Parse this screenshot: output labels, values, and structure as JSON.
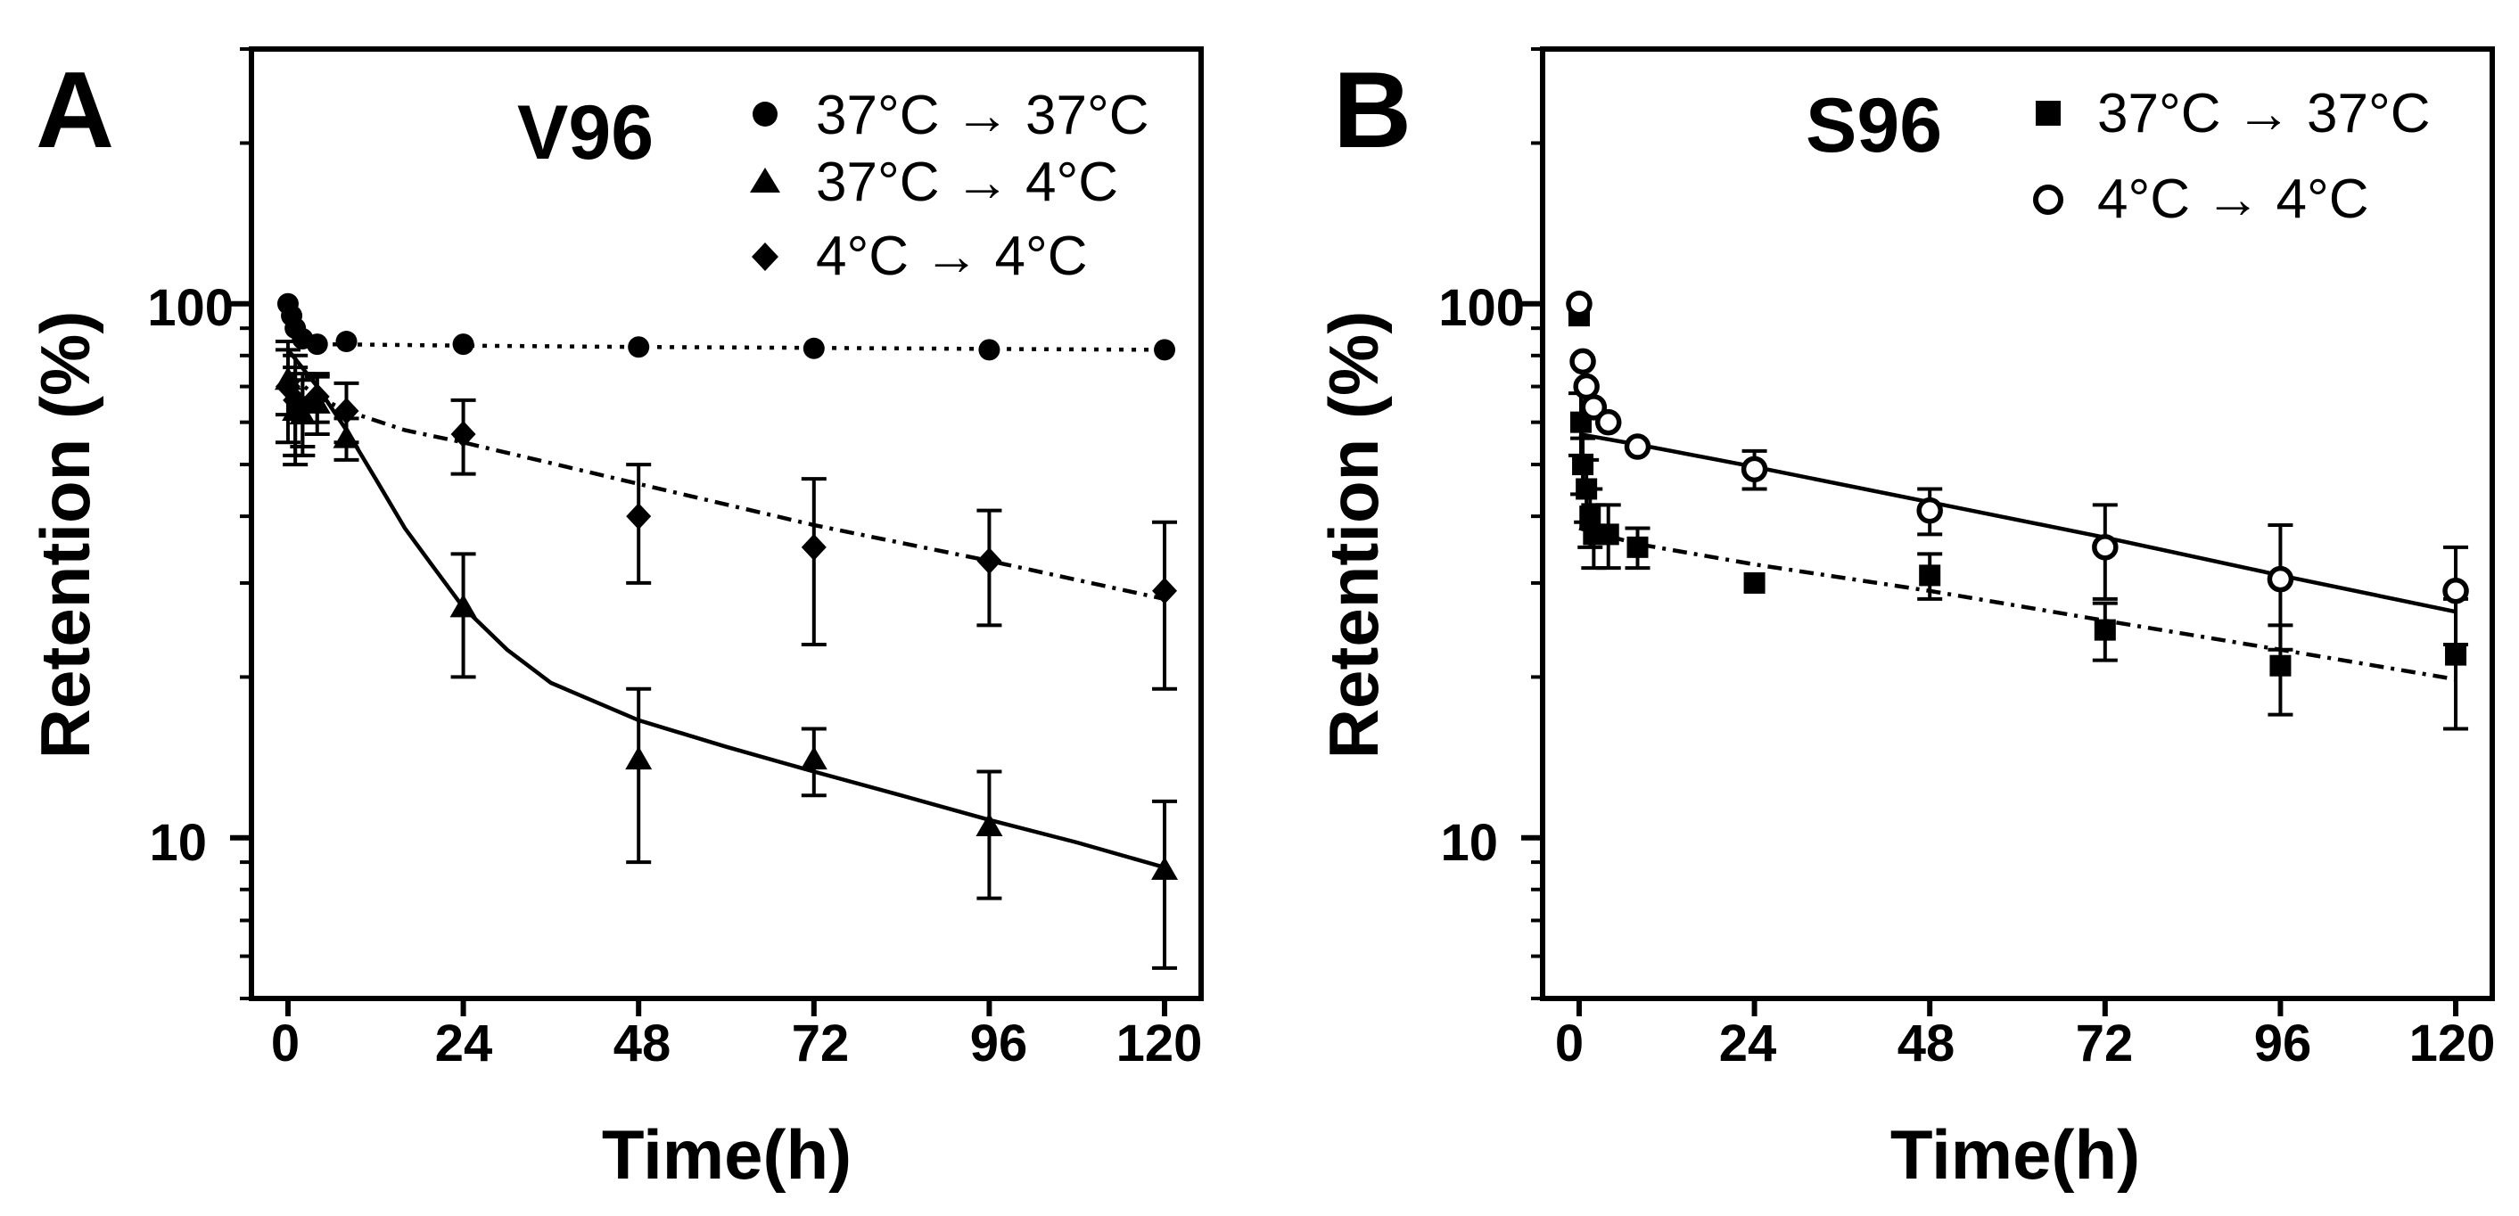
{
  "panels": [
    {
      "letter": "A",
      "title": "V96",
      "xlabel": "Time(h)",
      "ylabel": "Retention (%)",
      "x_ticks": [
        "0",
        "24",
        "48",
        "72",
        "96",
        "120"
      ],
      "y_ticks": [
        "10",
        "100"
      ],
      "legend": [
        {
          "label": "37°C → 37°C",
          "marker": "circle-filled"
        },
        {
          "label": "37°C → 4°C",
          "marker": "triangle-filled"
        },
        {
          "label": "4°C → 4°C",
          "marker": "diamond-filled"
        }
      ]
    },
    {
      "letter": "B",
      "title": "S96",
      "xlabel": "Time(h)",
      "ylabel": "Retention (%)",
      "x_ticks": [
        "0",
        "24",
        "48",
        "72",
        "96",
        "120"
      ],
      "y_ticks": [
        "10",
        "100"
      ],
      "legend": [
        {
          "label": "37°C → 37°C",
          "marker": "square-filled"
        },
        {
          "label": "4°C → 4°C",
          "marker": "circle-open"
        }
      ]
    }
  ],
  "chart_data": [
    {
      "type": "scatter",
      "title": "V96",
      "xlabel": "Time(h)",
      "ylabel": "Retention (%)",
      "xlim": [
        -5,
        125
      ],
      "ylim": [
        5,
        300
      ],
      "y_scale": "log",
      "x_ticks": [
        0,
        24,
        48,
        72,
        96,
        120
      ],
      "y_ticks": [
        10,
        100
      ],
      "grid": false,
      "legend_position": "top-right",
      "series": [
        {
          "name": "37°C → 37°C",
          "marker": "circle-filled",
          "fit_line": "dotted",
          "points": [
            {
              "x": 0,
              "y": 100
            },
            {
              "x": 0.5,
              "y": 95
            },
            {
              "x": 1,
              "y": 90
            },
            {
              "x": 2,
              "y": 86
            },
            {
              "x": 4,
              "y": 84
            },
            {
              "x": 8,
              "y": 85
            },
            {
              "x": 24,
              "y": 84
            },
            {
              "x": 48,
              "y": 83
            },
            {
              "x": 72,
              "y": 82.5
            },
            {
              "x": 96,
              "y": 82
            },
            {
              "x": 120,
              "y": 82
            }
          ],
          "fit": [
            {
              "x": 0,
              "y": 90
            },
            {
              "x": 2,
              "y": 85
            },
            {
              "x": 5,
              "y": 84
            },
            {
              "x": 24,
              "y": 83.5
            },
            {
              "x": 48,
              "y": 83
            },
            {
              "x": 72,
              "y": 82.7
            },
            {
              "x": 96,
              "y": 82.3
            },
            {
              "x": 120,
              "y": 82
            }
          ]
        },
        {
          "name": "37°C → 4°C",
          "marker": "triangle-filled",
          "fit_line": "solid",
          "points": [
            {
              "x": 0,
              "y": 72,
              "err": 10
            },
            {
              "x": 1,
              "y": 63,
              "err": 13
            },
            {
              "x": 2,
              "y": 62,
              "err": 10
            },
            {
              "x": 4,
              "y": 65,
              "err": 8
            },
            {
              "x": 8,
              "y": 56,
              "err": 5
            },
            {
              "x": 24,
              "y": 27,
              "err": 7
            },
            {
              "x": 48,
              "y": 14,
              "err": 5
            },
            {
              "x": 72,
              "y": 14,
              "err": 2
            },
            {
              "x": 96,
              "y": 10.5,
              "err": 2.8
            },
            {
              "x": 120,
              "y": 8.7,
              "err": 3
            }
          ],
          "fit": [
            {
              "x": 0,
              "y": 82
            },
            {
              "x": 4,
              "y": 70
            },
            {
              "x": 8,
              "y": 58
            },
            {
              "x": 12,
              "y": 47
            },
            {
              "x": 16,
              "y": 38
            },
            {
              "x": 20,
              "y": 32
            },
            {
              "x": 24,
              "y": 27
            },
            {
              "x": 30,
              "y": 22.5
            },
            {
              "x": 36,
              "y": 19.5
            },
            {
              "x": 48,
              "y": 16.6
            },
            {
              "x": 60,
              "y": 14.8
            },
            {
              "x": 72,
              "y": 13.3
            },
            {
              "x": 84,
              "y": 12
            },
            {
              "x": 96,
              "y": 10.8
            },
            {
              "x": 108,
              "y": 9.8
            },
            {
              "x": 120,
              "y": 8.8
            }
          ]
        },
        {
          "name": "4°C → 4°C",
          "marker": "diamond-filled",
          "fit_line": "dash-dot",
          "points": [
            {
              "x": 0,
              "y": 70,
              "err": 15
            },
            {
              "x": 1,
              "y": 66,
              "err": 14
            },
            {
              "x": 2,
              "y": 64,
              "err": 10
            },
            {
              "x": 4,
              "y": 67,
              "err": 7
            },
            {
              "x": 8,
              "y": 63,
              "err": 8
            },
            {
              "x": 24,
              "y": 57,
              "err": 9
            },
            {
              "x": 48,
              "y": 40,
              "err": 10
            },
            {
              "x": 72,
              "y": 35,
              "err": 12
            },
            {
              "x": 96,
              "y": 33,
              "err": 8
            },
            {
              "x": 120,
              "y": 29,
              "err": 10
            }
          ],
          "fit": [
            {
              "x": 0,
              "y": 74
            },
            {
              "x": 4,
              "y": 67
            },
            {
              "x": 8,
              "y": 63
            },
            {
              "x": 16,
              "y": 58
            },
            {
              "x": 24,
              "y": 55
            },
            {
              "x": 48,
              "y": 46
            },
            {
              "x": 72,
              "y": 38.5
            },
            {
              "x": 96,
              "y": 33
            },
            {
              "x": 120,
              "y": 28
            }
          ]
        }
      ]
    },
    {
      "type": "scatter",
      "title": "S96",
      "xlabel": "Time(h)",
      "ylabel": "Retention (%)",
      "xlim": [
        -5,
        125
      ],
      "ylim": [
        5,
        300
      ],
      "y_scale": "log",
      "x_ticks": [
        0,
        24,
        48,
        72,
        96,
        120
      ],
      "y_ticks": [
        10,
        100
      ],
      "grid": false,
      "legend_position": "top-right",
      "series": [
        {
          "name": "37°C → 37°C",
          "marker": "square-filled",
          "fit_line": "dash-dot",
          "points": [
            {
              "x": 0,
              "y": 95
            },
            {
              "x": 0.25,
              "y": 60,
              "err": 8
            },
            {
              "x": 0.5,
              "y": 50,
              "err": 6
            },
            {
              "x": 1,
              "y": 45,
              "err": 6
            },
            {
              "x": 1.5,
              "y": 40,
              "err": 5
            },
            {
              "x": 2,
              "y": 37,
              "err": 5
            },
            {
              "x": 4,
              "y": 37,
              "err": 5
            },
            {
              "x": 8,
              "y": 35,
              "err": 3
            },
            {
              "x": 24,
              "y": 30
            },
            {
              "x": 48,
              "y": 31,
              "err": 3
            },
            {
              "x": 72,
              "y": 24.5,
              "err": 3
            },
            {
              "x": 96,
              "y": 21,
              "err": 4
            },
            {
              "x": 120,
              "y": 22,
              "err": 6
            }
          ],
          "fit": [
            {
              "x": 0,
              "y": 38
            },
            {
              "x": 8,
              "y": 35.5
            },
            {
              "x": 24,
              "y": 32.5
            },
            {
              "x": 48,
              "y": 29
            },
            {
              "x": 72,
              "y": 25.5
            },
            {
              "x": 96,
              "y": 22.5
            },
            {
              "x": 120,
              "y": 19.8
            }
          ]
        },
        {
          "name": "4°C → 4°C",
          "marker": "circle-open",
          "fit_line": "solid",
          "points": [
            {
              "x": 0,
              "y": 100
            },
            {
              "x": 0.5,
              "y": 78
            },
            {
              "x": 1,
              "y": 70
            },
            {
              "x": 2,
              "y": 64
            },
            {
              "x": 4,
              "y": 60
            },
            {
              "x": 8,
              "y": 54
            },
            {
              "x": 24,
              "y": 49,
              "err": 4
            },
            {
              "x": 48,
              "y": 41,
              "err": 4
            },
            {
              "x": 72,
              "y": 35,
              "err": 7
            },
            {
              "x": 96,
              "y": 30.5,
              "err": 8
            },
            {
              "x": 120,
              "y": 29,
              "err": 6
            }
          ],
          "fit": [
            {
              "x": 0,
              "y": 57
            },
            {
              "x": 8,
              "y": 54.5
            },
            {
              "x": 24,
              "y": 49.5
            },
            {
              "x": 48,
              "y": 42.5
            },
            {
              "x": 72,
              "y": 36.5
            },
            {
              "x": 96,
              "y": 31
            },
            {
              "x": 120,
              "y": 26.5
            }
          ]
        }
      ]
    }
  ]
}
